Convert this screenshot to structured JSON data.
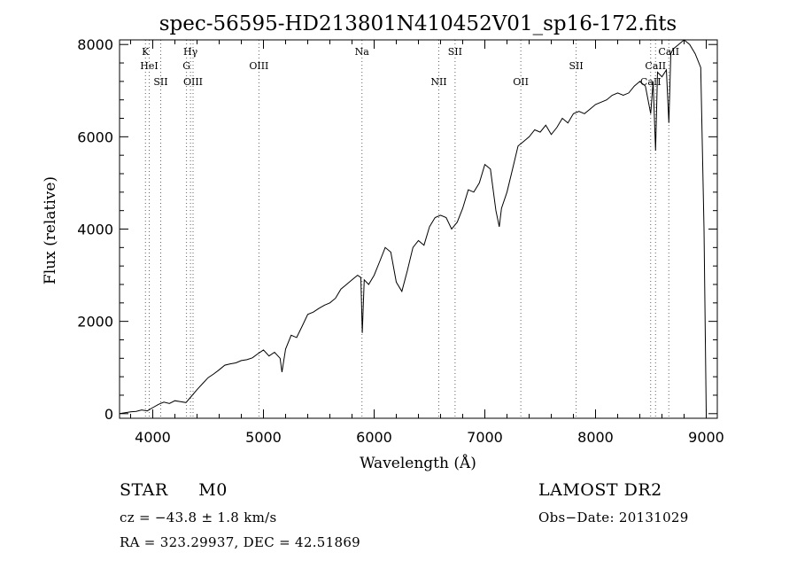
{
  "chart_data": {
    "type": "line",
    "title": "spec-56595-HD213801N410452V01_sp16-172.fits",
    "xlabel": "Wavelength (Å)",
    "ylabel": "Flux (relative)",
    "xlim": [
      3700,
      9100
    ],
    "ylim": [
      -100,
      8100
    ],
    "x_ticks": [
      4000,
      5000,
      6000,
      7000,
      8000,
      9000
    ],
    "y_ticks": [
      0,
      2000,
      4000,
      6000,
      8000
    ],
    "grid": false,
    "series": [
      {
        "x": [
          3700,
          3750,
          3800,
          3850,
          3900,
          3950,
          4000,
          4050,
          4100,
          4150,
          4200,
          4250,
          4300,
          4350,
          4400,
          4450,
          4500,
          4550,
          4600,
          4650,
          4700,
          4750,
          4800,
          4850,
          4900,
          4950,
          5000,
          5050,
          5100,
          5150,
          5167,
          5200,
          5250,
          5300,
          5350,
          5400,
          5450,
          5500,
          5550,
          5600,
          5650,
          5700,
          5750,
          5800,
          5850,
          5880,
          5893,
          5910,
          5950,
          6000,
          6050,
          6100,
          6150,
          6200,
          6250,
          6300,
          6350,
          6400,
          6450,
          6500,
          6550,
          6600,
          6650,
          6700,
          6750,
          6800,
          6850,
          6900,
          6950,
          7000,
          7050,
          7100,
          7130,
          7150,
          7200,
          7250,
          7300,
          7350,
          7400,
          7450,
          7500,
          7550,
          7600,
          7650,
          7700,
          7750,
          7800,
          7850,
          7900,
          7950,
          8000,
          8050,
          8100,
          8150,
          8200,
          8250,
          8300,
          8350,
          8400,
          8450,
          8498,
          8520,
          8542,
          8560,
          8600,
          8640,
          8662,
          8680,
          8700,
          8750,
          8800,
          8850,
          8900,
          8950,
          8980,
          9000
        ],
        "y": [
          0,
          20,
          40,
          50,
          80,
          60,
          130,
          200,
          250,
          220,
          280,
          260,
          240,
          380,
          520,
          650,
          780,
          860,
          950,
          1050,
          1080,
          1100,
          1150,
          1170,
          1210,
          1300,
          1380,
          1250,
          1330,
          1200,
          900,
          1400,
          1700,
          1650,
          1900,
          2150,
          2200,
          2280,
          2350,
          2400,
          2500,
          2700,
          2800,
          2900,
          3000,
          2950,
          1750,
          2900,
          2800,
          3000,
          3300,
          3600,
          3500,
          2850,
          2650,
          3100,
          3600,
          3750,
          3650,
          4050,
          4250,
          4300,
          4250,
          4000,
          4150,
          4450,
          4850,
          4800,
          5000,
          5400,
          5300,
          4400,
          4050,
          4450,
          4800,
          5300,
          5800,
          5900,
          6000,
          6150,
          6100,
          6250,
          6050,
          6200,
          6400,
          6300,
          6500,
          6550,
          6500,
          6600,
          6700,
          6750,
          6800,
          6900,
          6950,
          6900,
          6950,
          7100,
          7200,
          7100,
          6500,
          7200,
          5700,
          7400,
          7300,
          7450,
          6300,
          7800,
          7900,
          8000,
          8100,
          8000,
          7800,
          7500,
          4000,
          0
        ]
      }
    ],
    "vlines": [
      {
        "x": 3934,
        "label": "K",
        "row": 1
      },
      {
        "x": 3968,
        "label": "HeI",
        "row": 2
      },
      {
        "x": 4072,
        "label": "SII",
        "row": 3
      },
      {
        "x": 4341,
        "label": "Hγ",
        "row": 1
      },
      {
        "x": 4305,
        "label": "G",
        "row": 2
      },
      {
        "x": 4364,
        "label": "OIII",
        "row": 3
      },
      {
        "x": 4959,
        "label": "OIII",
        "row": 2
      },
      {
        "x": 5890,
        "label": "Na",
        "row": 1
      },
      {
        "x": 6584,
        "label": "NII",
        "row": 3
      },
      {
        "x": 6731,
        "label": "SII",
        "row": 1
      },
      {
        "x": 7325,
        "label": "OII",
        "row": 3
      },
      {
        "x": 7825,
        "label": "SII",
        "row": 2
      },
      {
        "x": 8498,
        "label": "CaII",
        "row": 3
      },
      {
        "x": 8542,
        "label": "CaII",
        "row": 2
      },
      {
        "x": 8662,
        "label": "CaII",
        "row": 1
      }
    ]
  },
  "info": {
    "object_class": "STAR",
    "subclass": "M0",
    "survey": "LAMOST DR2",
    "redshift": "cz = −43.8 ± 1.8 km/s",
    "obs_date": "Obs−Date: 20131029",
    "coords": "RA = 323.29937, DEC =  42.51869"
  }
}
